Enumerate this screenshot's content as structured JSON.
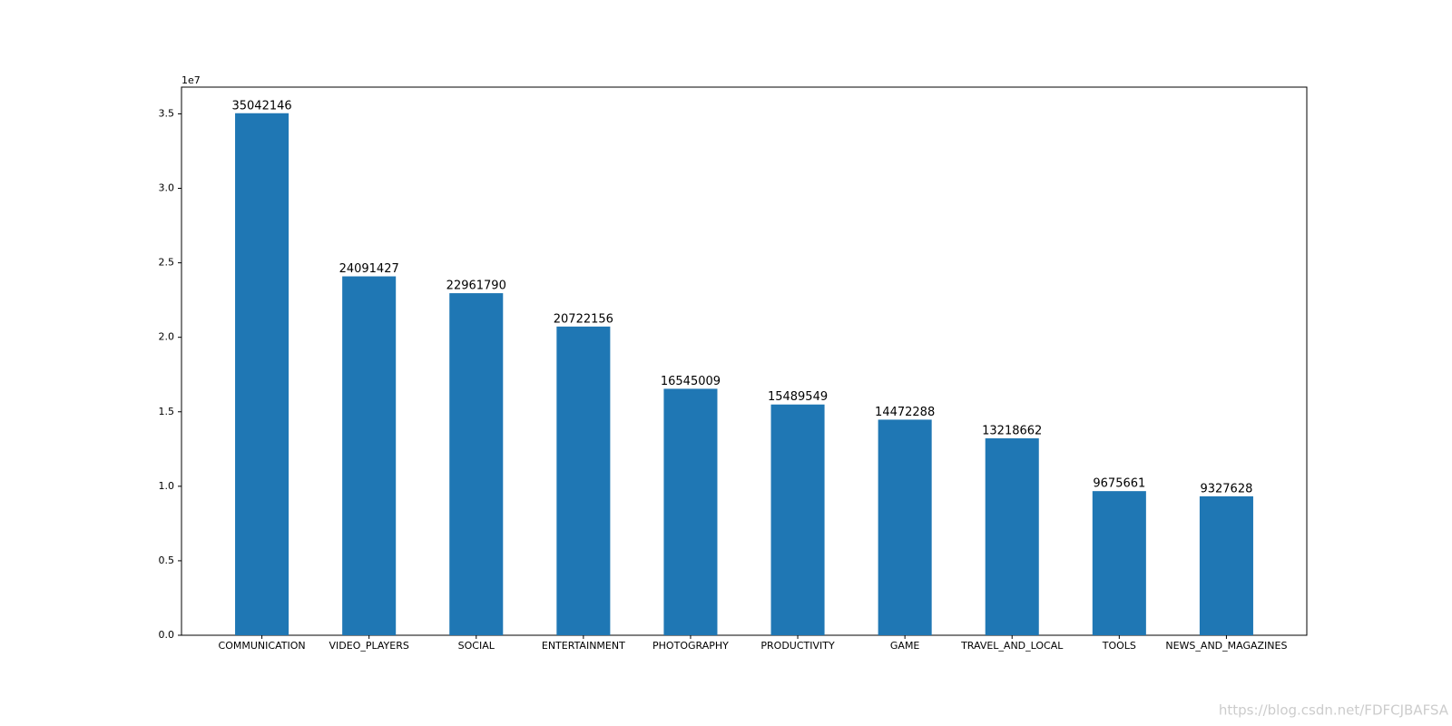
{
  "chart_data": {
    "type": "bar",
    "categories": [
      "COMMUNICATION",
      "VIDEO_PLAYERS",
      "SOCIAL",
      "ENTERTAINMENT",
      "PHOTOGRAPHY",
      "PRODUCTIVITY",
      "GAME",
      "TRAVEL_AND_LOCAL",
      "TOOLS",
      "NEWS_AND_MAGAZINES"
    ],
    "values": [
      35042146,
      24091427,
      22961790,
      20722156,
      16545009,
      15489549,
      14472288,
      13218662,
      9675661,
      9327628
    ],
    "color": "#1f77b4",
    "ylim": [
      0,
      36794253
    ],
    "yticks": [
      {
        "value": 0,
        "label": "0.0"
      },
      {
        "value": 5000000,
        "label": "0.5"
      },
      {
        "value": 10000000,
        "label": "1.0"
      },
      {
        "value": 15000000,
        "label": "1.5"
      },
      {
        "value": 20000000,
        "label": "2.0"
      },
      {
        "value": 25000000,
        "label": "2.5"
      },
      {
        "value": 30000000,
        "label": "3.0"
      },
      {
        "value": 35000000,
        "label": "3.5"
      }
    ],
    "y_offset_label": "1e7",
    "watermark": "https://blog.csdn.net/FDFCJBAFSA"
  }
}
